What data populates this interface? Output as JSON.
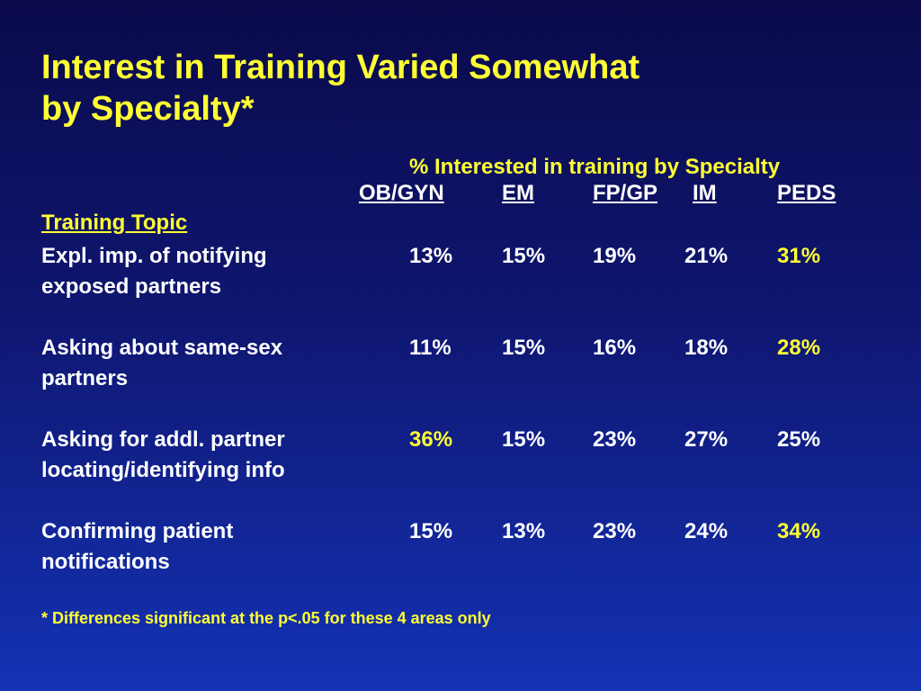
{
  "title": {
    "line1": "Interest in Training Varied Somewhat",
    "line2": "by Specialty*"
  },
  "subtitle": "% Interested in training by Specialty",
  "columns": [
    "OB/GYN",
    "EM",
    "FP/GP",
    "IM",
    "PEDS"
  ],
  "section_label": "Training Topic",
  "rows": [
    {
      "topic_line1": "Expl. imp. of notifying",
      "topic_line2": "exposed partners",
      "values": [
        "13%",
        "15%",
        "19%",
        "21%",
        "31%"
      ],
      "highlight": [
        false,
        false,
        false,
        false,
        true
      ]
    },
    {
      "topic_line1": "Asking about same-sex",
      "topic_line2": "partners",
      "values": [
        "11%",
        "15%",
        "16%",
        "18%",
        "28%"
      ],
      "highlight": [
        false,
        false,
        false,
        false,
        true
      ]
    },
    {
      "topic_line1": "Asking for addl. partner",
      "topic_line2": "locating/identifying info",
      "values": [
        "36%",
        "15%",
        "23%",
        "27%",
        "25%"
      ],
      "highlight": [
        true,
        false,
        false,
        false,
        false
      ]
    },
    {
      "topic_line1": "Confirming patient",
      "topic_line2": "notifications",
      "values": [
        "15%",
        "13%",
        "23%",
        "24%",
        "34%"
      ],
      "highlight": [
        false,
        false,
        false,
        false,
        true
      ]
    }
  ],
  "footnote": "* Differences significant at the p<.05 for these 4 areas only",
  "colors": {
    "accent": "#ffff33",
    "text": "#ffffff",
    "bg_top": "#0a0a4a",
    "bg_bottom": "#1432b4"
  }
}
